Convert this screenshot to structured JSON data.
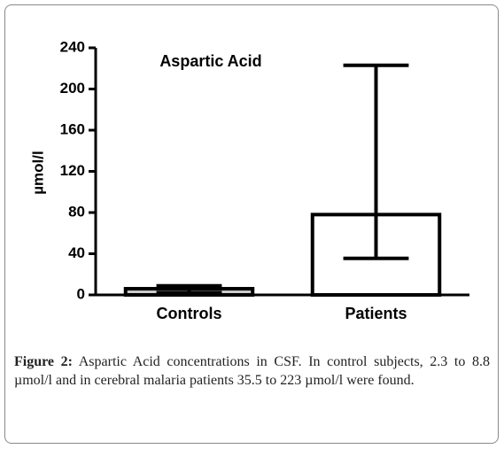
{
  "chart_data": {
    "type": "bar",
    "title": "Aspartic Acid",
    "y_label": "µmol/l",
    "categories": [
      "Controls",
      "Patients"
    ],
    "values": [
      6,
      78
    ],
    "error_low": [
      2.3,
      35.5
    ],
    "error_high": [
      8.8,
      223
    ],
    "colors": [
      "#cccccc",
      "#ffffff"
    ],
    "ylim": [
      0,
      240
    ],
    "yticks": [
      0,
      40,
      80,
      120,
      160,
      200,
      240
    ]
  },
  "caption": {
    "label": "Figure 2:",
    "text": "Aspartic Acid concentrations in CSF. In control subjects, 2.3 to 8.8 µmol/l and in cerebral malaria patients 35.5 to 223 µmol/l were found."
  }
}
